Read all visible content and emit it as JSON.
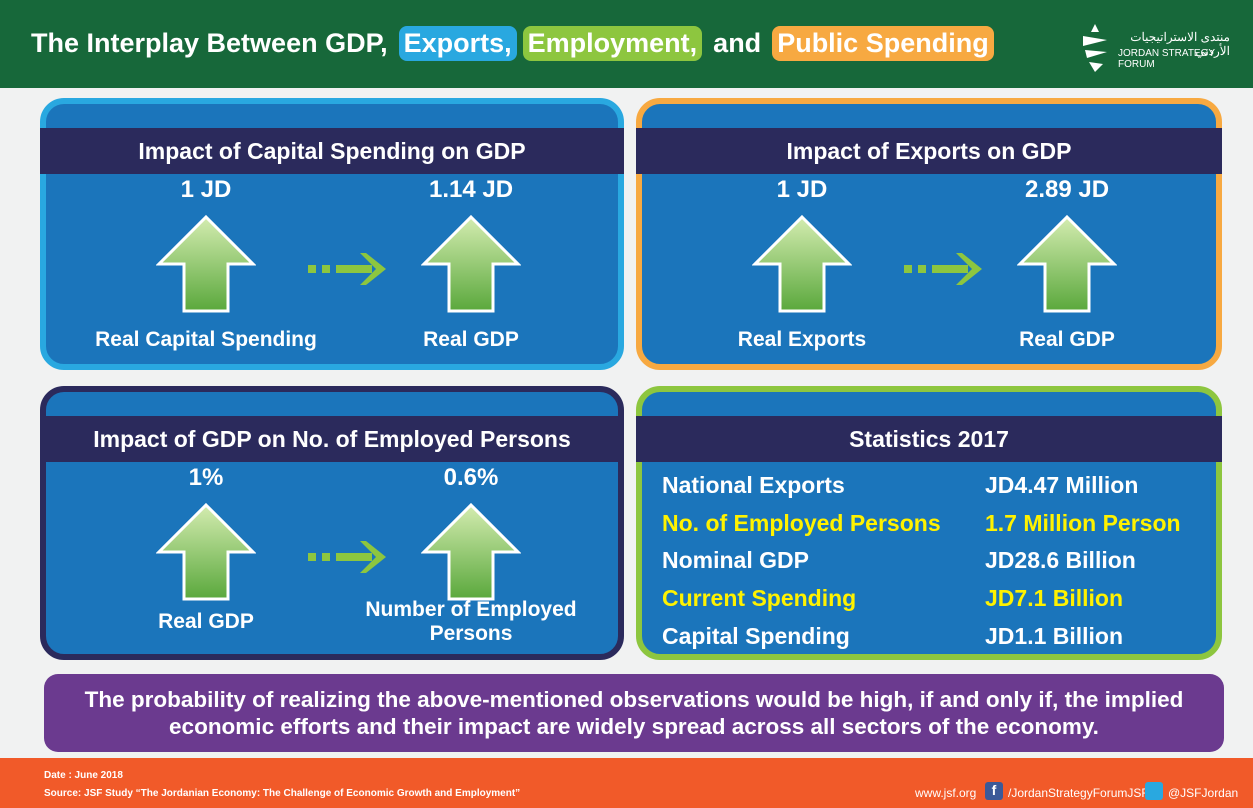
{
  "header": {
    "title_parts": [
      {
        "text": "The Interplay Between GDP,",
        "highlight": null
      },
      {
        "text": "Exports,",
        "highlight": "#29a8e0"
      },
      {
        "text": "Employment,",
        "highlight": "#8dc63f"
      },
      {
        "text": "and",
        "highlight": null
      },
      {
        "text": "Public Spending",
        "highlight": "#f7a941"
      }
    ],
    "logo_arabic": "منتدى الاستراتيجيات الأردني",
    "logo_english": "JORDAN STRATEGY FORUM"
  },
  "panels": [
    {
      "title": "Impact of Capital Spending on GDP",
      "from_value": "1 JD",
      "to_value": "1.14 JD",
      "from_label": "Real Capital Spending",
      "to_label": "Real GDP",
      "border": "#29a8e0"
    },
    {
      "title": "Impact of Exports on GDP",
      "from_value": "1 JD",
      "to_value": "2.89 JD",
      "from_label": "Real Exports",
      "to_label": "Real GDP",
      "border": "#f7a941"
    },
    {
      "title": "Impact of GDP on No. of Employed Persons",
      "from_value": "1%",
      "to_value": "0.6%",
      "from_label": "Real GDP",
      "to_label": "Number of Employed Persons",
      "border": "#2b2a5c"
    }
  ],
  "stats": {
    "title": "Statistics 2017",
    "border": "#8dc63f",
    "rows": [
      {
        "label": "National Exports",
        "value": "JD4.47 Million",
        "highlight": false
      },
      {
        "label": "No. of Employed Persons",
        "value": "1.7 Million Person",
        "highlight": true
      },
      {
        "label": "Nominal GDP",
        "value": "JD28.6 Billion",
        "highlight": false
      },
      {
        "label": "Current Spending",
        "value": "JD7.1 Billion",
        "highlight": true
      },
      {
        "label": "Capital Spending",
        "value": "JD1.1 Billion",
        "highlight": false
      }
    ]
  },
  "note": "The probability of realizing the above-mentioned observations would be high, if and only if, the implied economic efforts and their impact are widely spread across all sectors of the economy.",
  "footer": {
    "date": "Date : June 2018",
    "source": "Source: JSF Study “The Jordanian Economy: The Challenge of Economic Growth and Employment”",
    "website": "www.jsf.org",
    "facebook": "/JordanStrategyForumJSF",
    "twitter": "@JSFJordan"
  }
}
